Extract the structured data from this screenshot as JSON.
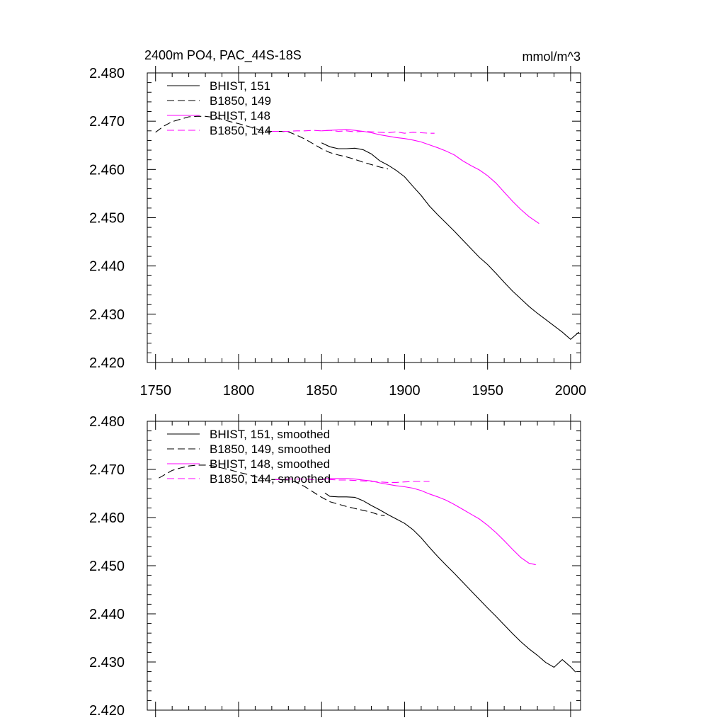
{
  "figure": {
    "title": "2400m PO4, PAC_44S-18S",
    "units": "mmol/m^3"
  },
  "colors": {
    "black": "#000000",
    "magenta": "#ff00ff"
  },
  "chart_data": [
    {
      "type": "line",
      "title": "2400m PO4, PAC_44S-18S",
      "units_label": "mmol/m^3",
      "xlim": [
        1745,
        2006
      ],
      "ylim": [
        2.42,
        2.48
      ],
      "x_ticks": [
        1750,
        1800,
        1850,
        1900,
        1950,
        2000
      ],
      "x_tick_labels": [
        "1750",
        "1800",
        "1850",
        "1900",
        "1950",
        "2000"
      ],
      "y_ticks": [
        2.42,
        2.43,
        2.44,
        2.45,
        2.46,
        2.47,
        2.48
      ],
      "y_tick_labels": [
        "2.420",
        "2.430",
        "2.440",
        "2.450",
        "2.460",
        "2.470",
        "2.480"
      ],
      "legend_position": "top-left",
      "series": [
        {
          "name": "BHIST, 151",
          "color": "black",
          "dash": "solid",
          "x": [
            1850,
            1855,
            1860,
            1865,
            1870,
            1875,
            1880,
            1885,
            1890,
            1895,
            1900,
            1905,
            1910,
            1915,
            1920,
            1925,
            1930,
            1935,
            1940,
            1945,
            1950,
            1955,
            1960,
            1965,
            1970,
            1975,
            1980,
            1985,
            1990,
            1995,
            2000,
            2005
          ],
          "y": [
            2.4655,
            2.4647,
            2.4643,
            2.4643,
            2.4644,
            2.4641,
            2.4632,
            2.4618,
            2.4609,
            2.4598,
            2.4585,
            2.4565,
            2.4546,
            2.4524,
            2.4506,
            2.4489,
            2.4472,
            2.4454,
            2.4436,
            2.4418,
            2.4403,
            2.4385,
            2.4366,
            2.4348,
            2.4332,
            2.4316,
            2.4302,
            2.4289,
            2.4276,
            2.4263,
            2.4248,
            2.4263
          ]
        },
        {
          "name": "B1850, 149",
          "color": "black",
          "dash": "dashed",
          "x": [
            1750,
            1755,
            1760,
            1765,
            1770,
            1775,
            1780,
            1785,
            1790,
            1795,
            1800,
            1805,
            1810,
            1815,
            1820,
            1825,
            1830,
            1835,
            1840,
            1845,
            1850,
            1855,
            1860,
            1865,
            1870,
            1875,
            1880,
            1885,
            1890
          ],
          "y": [
            2.4677,
            2.469,
            2.4699,
            2.4704,
            2.4709,
            2.471,
            2.471,
            2.4708,
            2.4704,
            2.4699,
            2.4695,
            2.469,
            2.4685,
            2.468,
            2.4679,
            2.4679,
            2.4678,
            2.4671,
            2.4663,
            2.4653,
            2.4643,
            2.4635,
            2.463,
            2.4626,
            2.4621,
            2.4615,
            2.461,
            2.4605,
            2.4601
          ]
        },
        {
          "name": "BHIST, 148",
          "color": "magenta",
          "dash": "solid",
          "x": [
            1850,
            1855,
            1860,
            1865,
            1870,
            1875,
            1880,
            1885,
            1890,
            1895,
            1900,
            1905,
            1910,
            1915,
            1920,
            1925,
            1930,
            1935,
            1940,
            1945,
            1950,
            1955,
            1960,
            1965,
            1970,
            1975,
            1981
          ],
          "y": [
            2.468,
            2.4681,
            2.4682,
            2.4683,
            2.4681,
            2.4679,
            2.4676,
            2.4672,
            2.4669,
            2.4666,
            2.4664,
            2.4661,
            2.4657,
            2.4651,
            2.4645,
            2.4638,
            2.463,
            2.4618,
            2.4608,
            2.4599,
            2.4587,
            2.4572,
            2.4553,
            2.4534,
            2.4517,
            2.4502,
            2.4488
          ]
        },
        {
          "name": "B1850, 144",
          "color": "magenta",
          "dash": "dashed",
          "x": [
            1820,
            1825,
            1830,
            1835,
            1840,
            1845,
            1850,
            1855,
            1860,
            1865,
            1870,
            1875,
            1880,
            1885,
            1890,
            1895,
            1900,
            1905,
            1910,
            1915,
            1918
          ],
          "y": [
            2.4679,
            2.4679,
            2.4679,
            2.468,
            2.468,
            2.4681,
            2.468,
            2.4681,
            2.4679,
            2.468,
            2.4678,
            2.4679,
            2.4678,
            2.4677,
            2.4676,
            2.4678,
            2.4675,
            2.4677,
            2.4676,
            2.4675,
            2.4675
          ]
        }
      ]
    },
    {
      "type": "line",
      "xlim": [
        1745,
        2006
      ],
      "ylim": [
        2.42,
        2.48
      ],
      "x_ticks": [
        1750,
        1800,
        1850,
        1900,
        1950,
        2000
      ],
      "y_ticks": [
        2.42,
        2.43,
        2.44,
        2.45,
        2.46,
        2.47,
        2.48
      ],
      "y_tick_labels": [
        "2.420",
        "2.430",
        "2.440",
        "2.450",
        "2.460",
        "2.470",
        "2.480"
      ],
      "legend_position": "top-left",
      "series": [
        {
          "name": "BHIST, 151, smoothed",
          "color": "black",
          "dash": "solid",
          "x": [
            1852,
            1855,
            1860,
            1865,
            1870,
            1875,
            1880,
            1885,
            1890,
            1895,
            1900,
            1905,
            1910,
            1915,
            1920,
            1925,
            1930,
            1935,
            1940,
            1945,
            1950,
            1955,
            1960,
            1965,
            1970,
            1975,
            1980,
            1985,
            1990,
            1995,
            2000,
            2003
          ],
          "y": [
            2.4651,
            2.4644,
            2.4643,
            2.4643,
            2.4642,
            2.4635,
            2.4625,
            2.4616,
            2.4606,
            2.4597,
            2.4588,
            2.4575,
            2.4558,
            2.4538,
            2.4519,
            2.4501,
            2.4484,
            2.4466,
            2.4448,
            2.443,
            2.4412,
            2.4395,
            2.4377,
            2.4359,
            2.4342,
            2.4327,
            2.4314,
            2.4299,
            2.4289,
            2.4305,
            2.429,
            2.4279
          ]
        },
        {
          "name": "B1850, 149, smoothed",
          "color": "black",
          "dash": "dashed",
          "x": [
            1752,
            1755,
            1760,
            1765,
            1770,
            1775,
            1780,
            1785,
            1790,
            1795,
            1800,
            1805,
            1810,
            1815,
            1820,
            1825,
            1830,
            1835,
            1840,
            1845,
            1850,
            1855,
            1860,
            1865,
            1870,
            1875,
            1880,
            1885,
            1888
          ],
          "y": [
            2.4682,
            2.4688,
            2.4698,
            2.4703,
            2.4707,
            2.4709,
            2.4709,
            2.4707,
            2.4703,
            2.4699,
            2.4694,
            2.469,
            2.4685,
            2.4681,
            2.4679,
            2.4679,
            2.4678,
            2.4673,
            2.4664,
            2.4653,
            2.4642,
            2.4633,
            2.4628,
            2.4623,
            2.4619,
            2.4615,
            2.4611,
            2.4605,
            2.4604
          ]
        },
        {
          "name": "BHIST, 148, smoothed",
          "color": "magenta",
          "dash": "solid",
          "x": [
            1852,
            1855,
            1860,
            1865,
            1870,
            1875,
            1880,
            1885,
            1890,
            1895,
            1900,
            1905,
            1910,
            1915,
            1920,
            1925,
            1930,
            1935,
            1940,
            1945,
            1950,
            1955,
            1960,
            1965,
            1970,
            1975,
            1979
          ],
          "y": [
            2.4681,
            2.4681,
            2.4681,
            2.4681,
            2.468,
            2.4678,
            2.4676,
            2.4672,
            2.4669,
            2.4666,
            2.4664,
            2.4661,
            2.4656,
            2.4649,
            2.4643,
            2.4636,
            2.4627,
            2.4617,
            2.4607,
            2.4597,
            2.4584,
            2.4569,
            2.4552,
            2.4534,
            2.4517,
            2.4505,
            2.4502
          ]
        },
        {
          "name": "B1850, 144, smoothed",
          "color": "magenta",
          "dash": "dashed",
          "x": [
            1822,
            1825,
            1830,
            1835,
            1840,
            1845,
            1850,
            1855,
            1860,
            1865,
            1870,
            1875,
            1880,
            1885,
            1890,
            1895,
            1900,
            1905,
            1910,
            1915
          ],
          "y": [
            2.4679,
            2.4679,
            2.468,
            2.468,
            2.468,
            2.4679,
            2.4679,
            2.4679,
            2.4678,
            2.4678,
            2.4677,
            2.4676,
            2.4675,
            2.4674,
            2.4673,
            2.4673,
            2.4674,
            2.4675,
            2.4675,
            2.4675
          ]
        }
      ]
    }
  ]
}
